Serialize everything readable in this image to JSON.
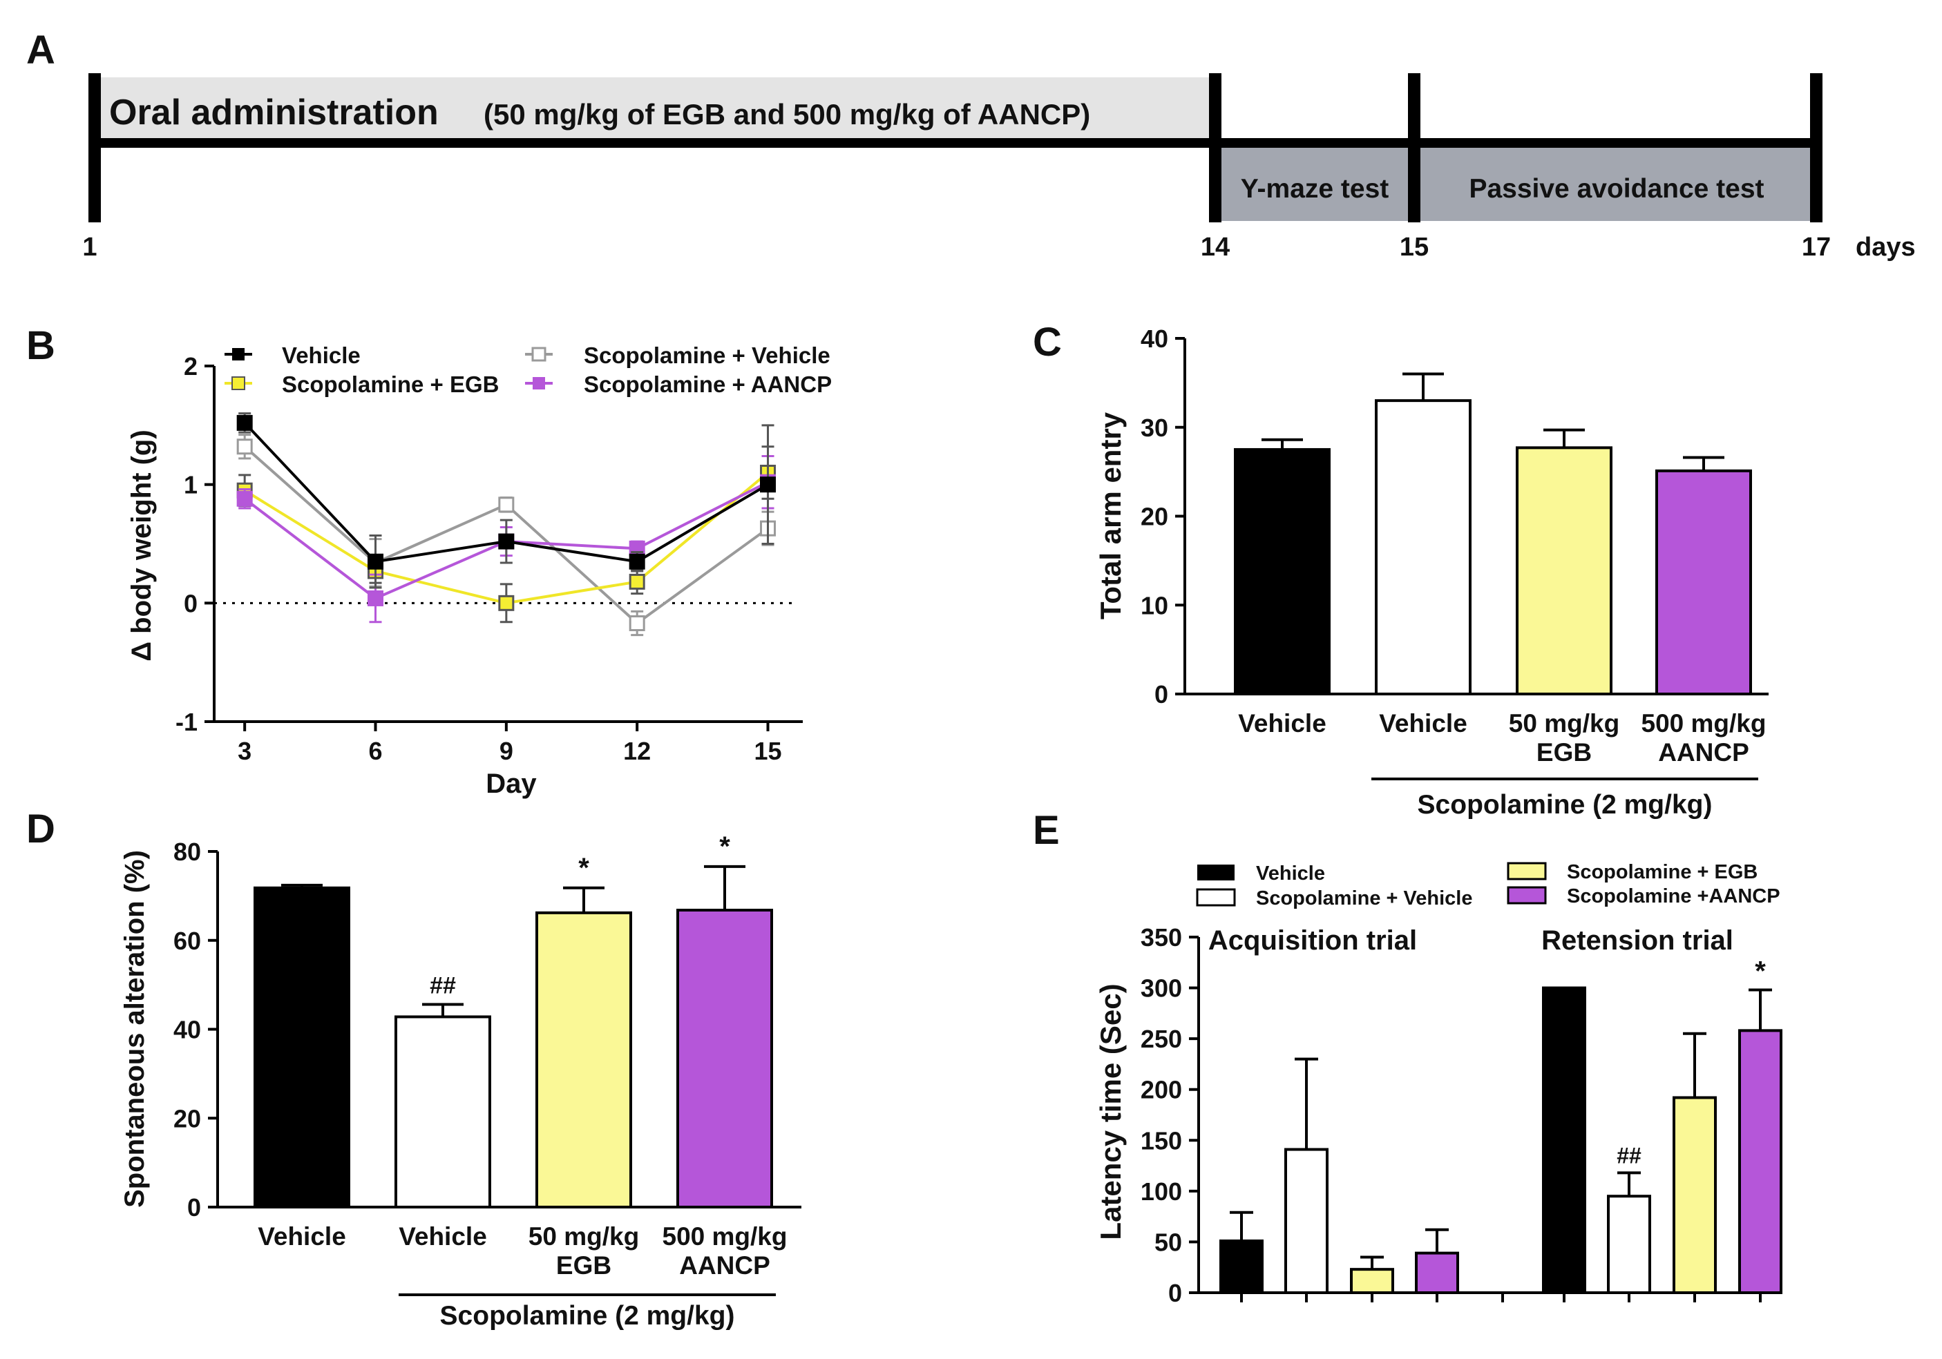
{
  "colors": {
    "vehicle": "#000000",
    "scop_vehicle": "#ffffff",
    "egb": "#faf896",
    "aancp": "#b556d9",
    "egb_line": "#f0e628",
    "aancp_line": "#b556d9",
    "scop_vehicle_line": "#9a9a9a",
    "timeline_light": "#e4e4e4",
    "timeline_dark": "#a3a7b0"
  },
  "panel_labels": {
    "a": "A",
    "b": "B",
    "c": "C",
    "d": "D",
    "e": "E"
  },
  "timeline": {
    "oral_title": "Oral administration",
    "oral_detail": "(50 mg/kg of EGB and 500 mg/kg of AANCP)",
    "ymaze": "Y-maze test",
    "passive": "Passive avoidance test",
    "days": [
      1,
      14,
      15,
      17
    ],
    "days_label": "days"
  },
  "chart_data": [
    {
      "panel": "B",
      "type": "line",
      "xlabel": "Day",
      "ylabel": "Δ body weight (g)",
      "x": [
        3,
        6,
        9,
        12,
        15
      ],
      "xlim": [
        2.3,
        15.8
      ],
      "ylim": [
        -1,
        2
      ],
      "yticks": [
        -1,
        0,
        1,
        2
      ],
      "reference_line": 0,
      "series": [
        {
          "name": "Vehicle",
          "marker": "filled-square",
          "values": [
            1.52,
            0.35,
            0.52,
            0.35,
            1.0
          ],
          "errors": [
            0.08,
            0.22,
            0.18,
            0.08,
            0.5
          ]
        },
        {
          "name": "Scopolamine + Vehicle",
          "marker": "open-square",
          "values": [
            1.32,
            0.34,
            0.83,
            -0.17,
            0.63
          ],
          "errors": [
            0.1,
            0.2,
            0.06,
            0.1,
            0.14
          ]
        },
        {
          "name": "Scopolamine + EGB",
          "marker": "yellow-square",
          "values": [
            0.95,
            0.27,
            0.0,
            0.18,
            1.1
          ],
          "errors": [
            0.13,
            0.1,
            0.16,
            0.1,
            0.22
          ]
        },
        {
          "name": "Scopolamine + AANCP",
          "marker": "purple-square",
          "values": [
            0.88,
            0.04,
            0.52,
            0.46,
            1.02
          ],
          "errors": [
            0.08,
            0.2,
            0.12,
            0.06,
            0.22
          ]
        }
      ]
    },
    {
      "panel": "C",
      "type": "bar",
      "ylabel": "Total arm entry",
      "categories": [
        [
          "Vehicle"
        ],
        [
          "Vehicle"
        ],
        [
          "50 mg/kg",
          "EGB"
        ],
        [
          "500 mg/kg",
          "AANCP"
        ]
      ],
      "values": [
        27.5,
        33.0,
        27.7,
        25.1
      ],
      "errors": [
        1.1,
        3.0,
        2.0,
        1.5
      ],
      "ylim": [
        0,
        40
      ],
      "yticks": [
        0,
        10,
        20,
        30,
        40
      ],
      "group_label": "Scopolamine (2 mg/kg)"
    },
    {
      "panel": "D",
      "type": "bar",
      "ylabel": "Spontaneous alteration (%)",
      "categories": [
        [
          "Vehicle"
        ],
        [
          "Vehicle"
        ],
        [
          "50 mg/kg",
          "EGB"
        ],
        [
          "500 mg/kg",
          "AANCP"
        ]
      ],
      "values": [
        71.8,
        42.8,
        66.2,
        66.8
      ],
      "errors": [
        0.6,
        2.8,
        5.6,
        9.8
      ],
      "annotations": [
        "",
        "##",
        "*",
        "*"
      ],
      "ylim": [
        0,
        80
      ],
      "yticks": [
        0,
        20,
        40,
        60,
        80
      ],
      "group_label": "Scopolamine (2 mg/kg)"
    },
    {
      "panel": "E",
      "type": "bar",
      "ylabel": "Latency time (Sec)",
      "legend": [
        "Vehicle",
        "Scopolamine + Vehicle",
        "Scopolamine + EGB",
        "Scopolamine +AANCP"
      ],
      "groups": [
        {
          "name": "Acquisition trial",
          "values": [
            51,
            141,
            23,
            39
          ],
          "errors": [
            28,
            89,
            12,
            23
          ],
          "annotations": [
            "",
            "",
            "",
            ""
          ]
        },
        {
          "name": "Retension trial",
          "values": [
            300,
            95,
            192,
            258
          ],
          "errors": [
            0,
            23,
            63,
            40
          ],
          "annotations": [
            "",
            "##",
            "",
            "*"
          ]
        }
      ],
      "ylim": [
        0,
        350
      ],
      "yticks": [
        0,
        50,
        100,
        150,
        200,
        250,
        300,
        350
      ]
    }
  ]
}
